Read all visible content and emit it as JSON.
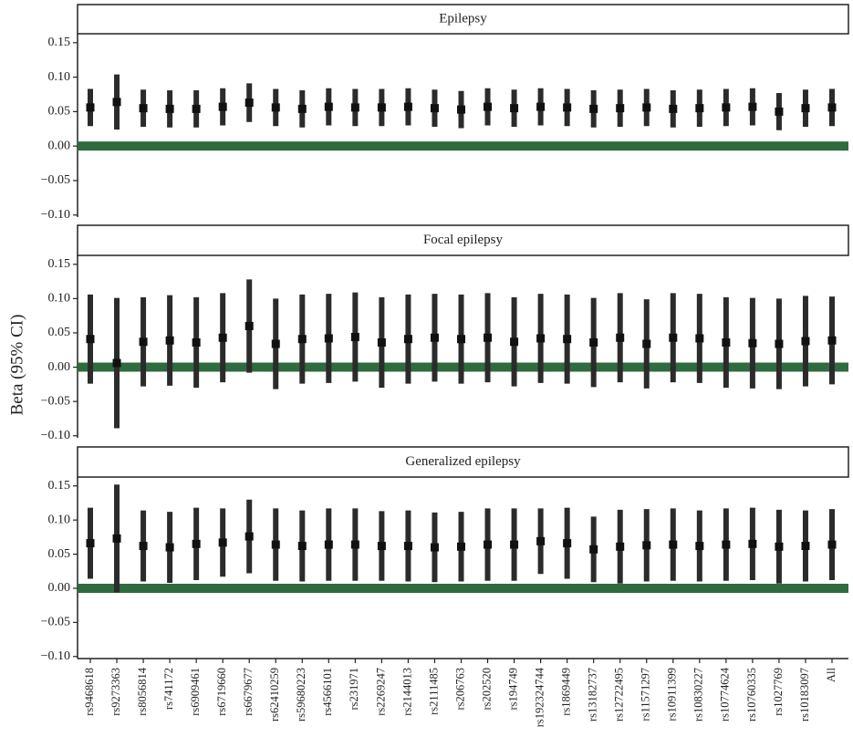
{
  "y_label": "Beta (95% CI)",
  "categories": [
    "rs9468618",
    "rs9273363",
    "rs8056814",
    "rs741172",
    "rs6909461",
    "rs6719660",
    "rs6679677",
    "rs62410259",
    "rs59680223",
    "rs4566101",
    "rs231971",
    "rs2269247",
    "rs2144013",
    "rs2111485",
    "rs206763",
    "rs202520",
    "rs194749",
    "rs192324744",
    "rs1869449",
    "rs13182737",
    "rs12722495",
    "rs11571297",
    "rs10911399",
    "rs10830227",
    "rs10774624",
    "rs10760335",
    "rs1027769",
    "rs10183097",
    "All"
  ],
  "chart_data": [
    {
      "type": "errorbar",
      "title": "Epilepsy",
      "color": "#2b2b2b",
      "reference_line": 0,
      "reference_color": "#2f6b3f",
      "values": [
        0.056,
        0.064,
        0.055,
        0.054,
        0.054,
        0.057,
        0.063,
        0.056,
        0.054,
        0.057,
        0.056,
        0.056,
        0.057,
        0.055,
        0.053,
        0.057,
        0.055,
        0.057,
        0.056,
        0.054,
        0.055,
        0.056,
        0.054,
        0.055,
        0.056,
        0.057,
        0.05,
        0.055,
        0.056
      ],
      "errors": [
        0.027,
        0.04,
        0.027,
        0.027,
        0.027,
        0.027,
        0.028,
        0.027,
        0.027,
        0.027,
        0.027,
        0.027,
        0.027,
        0.027,
        0.027,
        0.027,
        0.027,
        0.027,
        0.027,
        0.027,
        0.027,
        0.027,
        0.027,
        0.027,
        0.027,
        0.027,
        0.027,
        0.027,
        0.027
      ],
      "ylim": [
        -0.103,
        0.163
      ],
      "yticks": [
        {
          "value": -0.1,
          "label": "−0.10"
        },
        {
          "value": -0.05,
          "label": "−0.05"
        },
        {
          "value": 0,
          "label": "0.00"
        },
        {
          "value": 0.05,
          "label": "0.05"
        },
        {
          "value": 0.1,
          "label": "0.10"
        },
        {
          "value": 0.15,
          "label": "0.15"
        }
      ]
    },
    {
      "type": "errorbar",
      "title": "Focal epilepsy",
      "color": "#2b2b2b",
      "reference_line": 0,
      "reference_color": "#2f6b3f",
      "values": [
        0.041,
        0.006,
        0.037,
        0.039,
        0.036,
        0.043,
        0.06,
        0.034,
        0.041,
        0.042,
        0.044,
        0.036,
        0.041,
        0.043,
        0.041,
        0.043,
        0.037,
        0.042,
        0.041,
        0.036,
        0.043,
        0.034,
        0.043,
        0.042,
        0.036,
        0.035,
        0.034,
        0.038,
        0.039
      ],
      "errors": [
        0.065,
        0.095,
        0.065,
        0.066,
        0.066,
        0.065,
        0.068,
        0.066,
        0.065,
        0.065,
        0.065,
        0.066,
        0.065,
        0.064,
        0.065,
        0.065,
        0.065,
        0.065,
        0.065,
        0.065,
        0.065,
        0.065,
        0.065,
        0.065,
        0.066,
        0.066,
        0.066,
        0.066,
        0.064
      ],
      "ylim": [
        -0.103,
        0.163
      ],
      "yticks": [
        {
          "value": -0.1,
          "label": "−0.10"
        },
        {
          "value": -0.05,
          "label": "−0.05"
        },
        {
          "value": 0,
          "label": "0.00"
        },
        {
          "value": 0.05,
          "label": "0.05"
        },
        {
          "value": 0.1,
          "label": "0.10"
        },
        {
          "value": 0.15,
          "label": "0.15"
        }
      ]
    },
    {
      "type": "errorbar",
      "title": "Generalized epilepsy",
      "color": "#2b2b2b",
      "reference_line": 0,
      "reference_color": "#2f6b3f",
      "values": [
        0.066,
        0.073,
        0.062,
        0.06,
        0.065,
        0.067,
        0.076,
        0.064,
        0.062,
        0.064,
        0.064,
        0.062,
        0.062,
        0.06,
        0.061,
        0.064,
        0.064,
        0.069,
        0.066,
        0.057,
        0.061,
        0.063,
        0.064,
        0.062,
        0.064,
        0.065,
        0.061,
        0.062,
        0.064
      ],
      "errors": [
        0.052,
        0.079,
        0.052,
        0.052,
        0.053,
        0.05,
        0.054,
        0.053,
        0.052,
        0.053,
        0.053,
        0.051,
        0.052,
        0.051,
        0.051,
        0.053,
        0.053,
        0.048,
        0.052,
        0.048,
        0.054,
        0.053,
        0.053,
        0.052,
        0.053,
        0.053,
        0.054,
        0.052,
        0.052
      ],
      "ylim": [
        -0.103,
        0.163
      ],
      "yticks": [
        {
          "value": -0.1,
          "label": "−0.10"
        },
        {
          "value": -0.05,
          "label": "−0.05"
        },
        {
          "value": 0,
          "label": "0.00"
        },
        {
          "value": 0.05,
          "label": "0.05"
        },
        {
          "value": 0.1,
          "label": "0.10"
        },
        {
          "value": 0.15,
          "label": "0.15"
        }
      ]
    }
  ]
}
